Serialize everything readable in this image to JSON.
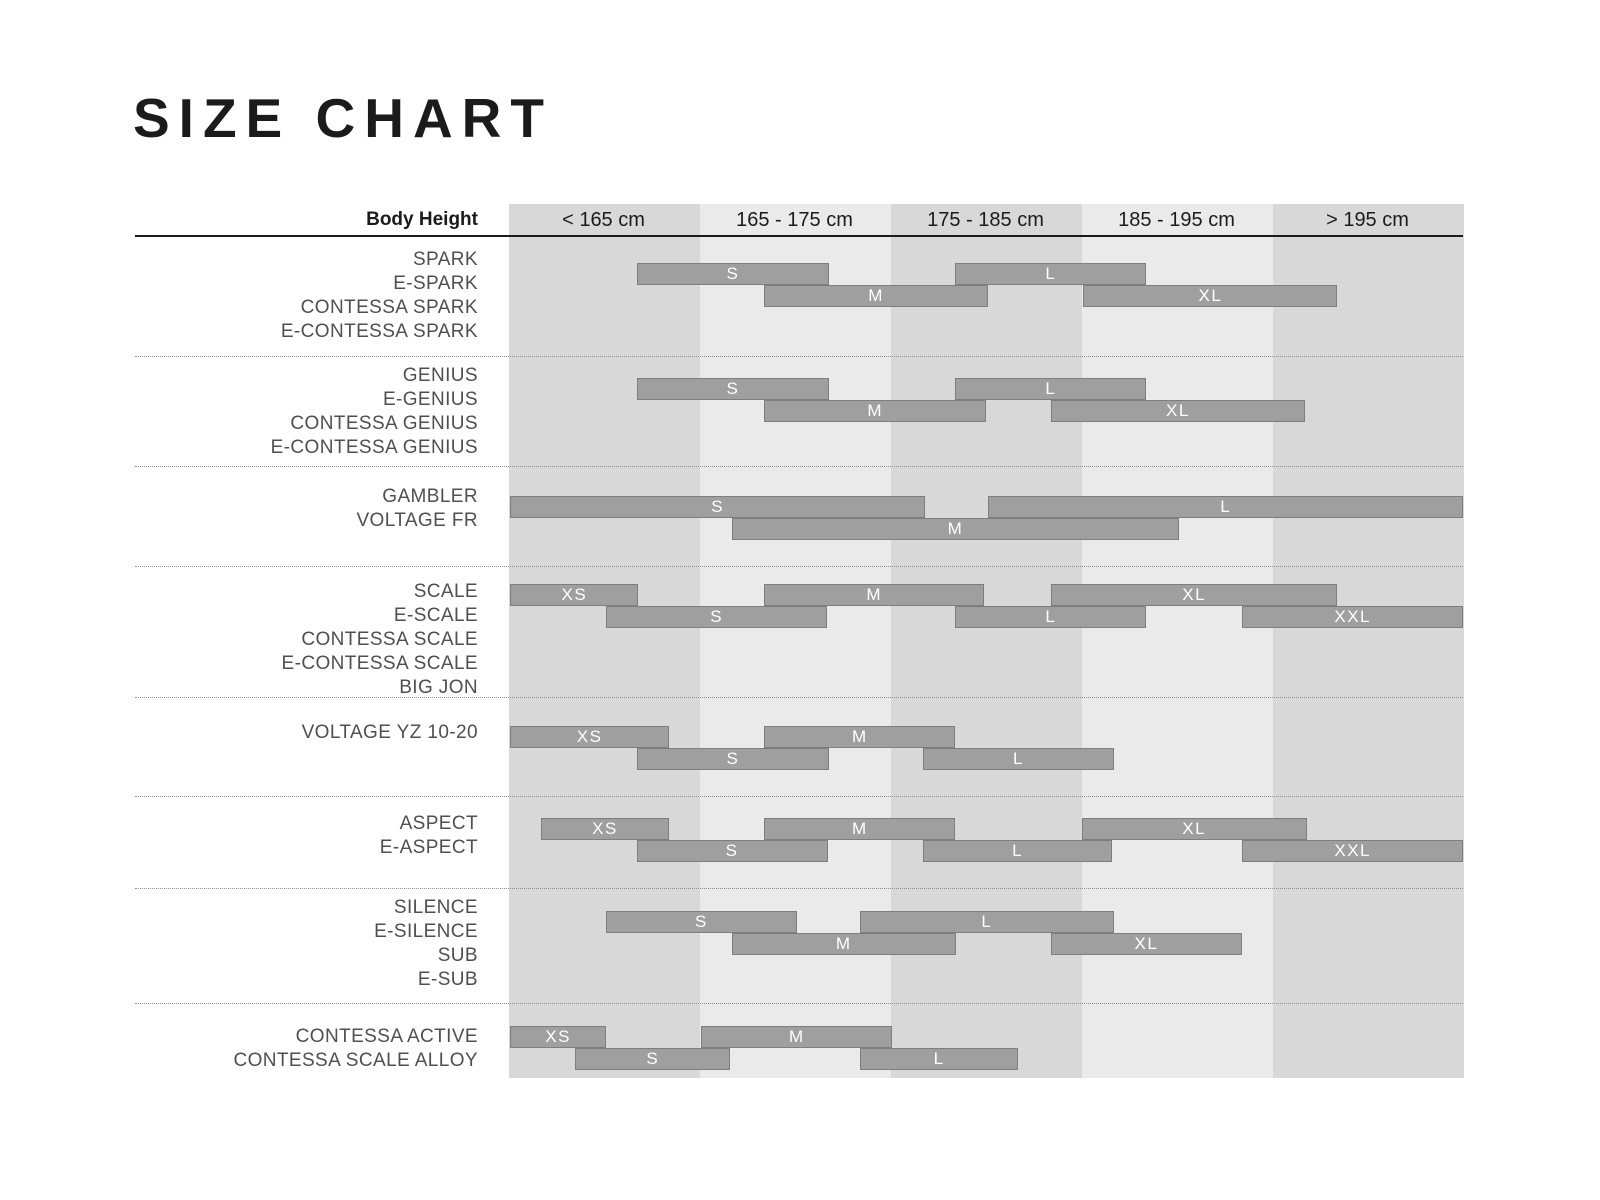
{
  "title": "SIZE CHART",
  "header": {
    "axis_label": "Body Height",
    "columns": [
      "< 165 cm",
      "165 - 175 cm",
      "175 - 185 cm",
      "185 - 195 cm",
      "> 195 cm"
    ]
  },
  "colors": {
    "column_dark": "#d8d8d8",
    "column_light": "#eaeaea",
    "bar_fill": "#9f9f9f",
    "bar_border": "#7e7e7e",
    "bar_label_text": "#ffffff",
    "divider": "#8f8f8f",
    "heading_text": "#1b1b1b",
    "model_label_text": "#4f4f4f"
  },
  "chart_data": {
    "type": "range-bar",
    "title": "SIZE CHART",
    "xlabel": "Body Height",
    "x_unit": "cm",
    "x_domain": [
      155,
      205
    ],
    "column_labels": [
      "< 165 cm",
      "165 - 175 cm",
      "175 - 185 cm",
      "185 - 195 cm",
      "> 195 cm"
    ],
    "column_edges_cm": [
      155,
      165,
      175,
      185,
      195,
      205
    ],
    "sizes_legend": [
      "XS",
      "S",
      "M",
      "L",
      "XL",
      "XXL"
    ],
    "groups": [
      {
        "models": [
          "SPARK",
          "E-SPARK",
          "CONTESSA SPARK",
          "E-CONTESSA SPARK"
        ],
        "bars": [
          {
            "size": "S",
            "row": 0,
            "from_cm": 161.7,
            "to_cm": 171.8
          },
          {
            "size": "L",
            "row": 0,
            "from_cm": 178.4,
            "to_cm": 188.4
          },
          {
            "size": "M",
            "row": 1,
            "from_cm": 168.4,
            "to_cm": 180.1
          },
          {
            "size": "XL",
            "row": 1,
            "from_cm": 185.1,
            "to_cm": 198.4
          }
        ]
      },
      {
        "models": [
          "GENIUS",
          "E-GENIUS",
          "CONTESSA GENIUS",
          "E-CONTESSA GENIUS"
        ],
        "bars": [
          {
            "size": "S",
            "row": 0,
            "from_cm": 161.7,
            "to_cm": 171.8
          },
          {
            "size": "L",
            "row": 0,
            "from_cm": 178.4,
            "to_cm": 188.4
          },
          {
            "size": "M",
            "row": 1,
            "from_cm": 168.4,
            "to_cm": 180.0
          },
          {
            "size": "XL",
            "row": 1,
            "from_cm": 183.4,
            "to_cm": 196.7
          }
        ]
      },
      {
        "models": [
          "GAMBLER",
          "VOLTAGE FR"
        ],
        "bars": [
          {
            "size": "S",
            "row": 0,
            "from_cm": 155.1,
            "to_cm": 176.8
          },
          {
            "size": "L",
            "row": 0,
            "from_cm": 180.1,
            "to_cm": 205.0
          },
          {
            "size": "M",
            "row": 1,
            "from_cm": 166.7,
            "to_cm": 190.1
          }
        ]
      },
      {
        "models": [
          "SCALE",
          "E-SCALE",
          "CONTESSA SCALE",
          "E-CONTESSA SCALE",
          "BIG JON"
        ],
        "bars": [
          {
            "size": "XS",
            "row": 0,
            "from_cm": 155.1,
            "to_cm": 161.8
          },
          {
            "size": "M",
            "row": 0,
            "from_cm": 168.4,
            "to_cm": 179.9
          },
          {
            "size": "XL",
            "row": 0,
            "from_cm": 183.4,
            "to_cm": 198.4
          },
          {
            "size": "S",
            "row": 1,
            "from_cm": 160.1,
            "to_cm": 171.7
          },
          {
            "size": "L",
            "row": 1,
            "from_cm": 178.4,
            "to_cm": 188.4
          },
          {
            "size": "XXL",
            "row": 1,
            "from_cm": 193.4,
            "to_cm": 205.0
          }
        ]
      },
      {
        "models": [
          "VOLTAGE YZ 10-20"
        ],
        "bars": [
          {
            "size": "XS",
            "row": 0,
            "from_cm": 155.1,
            "to_cm": 163.4
          },
          {
            "size": "M",
            "row": 0,
            "from_cm": 168.4,
            "to_cm": 178.4
          },
          {
            "size": "S",
            "row": 1,
            "from_cm": 161.7,
            "to_cm": 171.8
          },
          {
            "size": "L",
            "row": 1,
            "from_cm": 176.7,
            "to_cm": 186.7
          }
        ]
      },
      {
        "models": [
          "ASPECT",
          "E-ASPECT"
        ],
        "bars": [
          {
            "size": "XS",
            "row": 0,
            "from_cm": 156.7,
            "to_cm": 163.4
          },
          {
            "size": "M",
            "row": 0,
            "from_cm": 168.4,
            "to_cm": 178.4
          },
          {
            "size": "XL",
            "row": 0,
            "from_cm": 185.0,
            "to_cm": 196.8
          },
          {
            "size": "S",
            "row": 1,
            "from_cm": 161.7,
            "to_cm": 171.7
          },
          {
            "size": "L",
            "row": 1,
            "from_cm": 176.7,
            "to_cm": 186.6
          },
          {
            "size": "XXL",
            "row": 1,
            "from_cm": 193.4,
            "to_cm": 205.0
          }
        ]
      },
      {
        "models": [
          "SILENCE",
          "E-SILENCE",
          "SUB",
          "E-SUB"
        ],
        "bars": [
          {
            "size": "S",
            "row": 0,
            "from_cm": 160.1,
            "to_cm": 170.1
          },
          {
            "size": "L",
            "row": 0,
            "from_cm": 173.4,
            "to_cm": 186.7
          },
          {
            "size": "M",
            "row": 1,
            "from_cm": 166.7,
            "to_cm": 178.4
          },
          {
            "size": "XL",
            "row": 1,
            "from_cm": 183.4,
            "to_cm": 193.4
          }
        ]
      },
      {
        "models": [
          "CONTESSA ACTIVE",
          "CONTESSA SCALE ALLOY"
        ],
        "bars": [
          {
            "size": "XS",
            "row": 0,
            "from_cm": 155.1,
            "to_cm": 160.1
          },
          {
            "size": "M",
            "row": 0,
            "from_cm": 165.1,
            "to_cm": 175.1
          },
          {
            "size": "S",
            "row": 1,
            "from_cm": 158.5,
            "to_cm": 166.6
          },
          {
            "size": "L",
            "row": 1,
            "from_cm": 173.4,
            "to_cm": 181.7
          }
        ]
      }
    ]
  }
}
